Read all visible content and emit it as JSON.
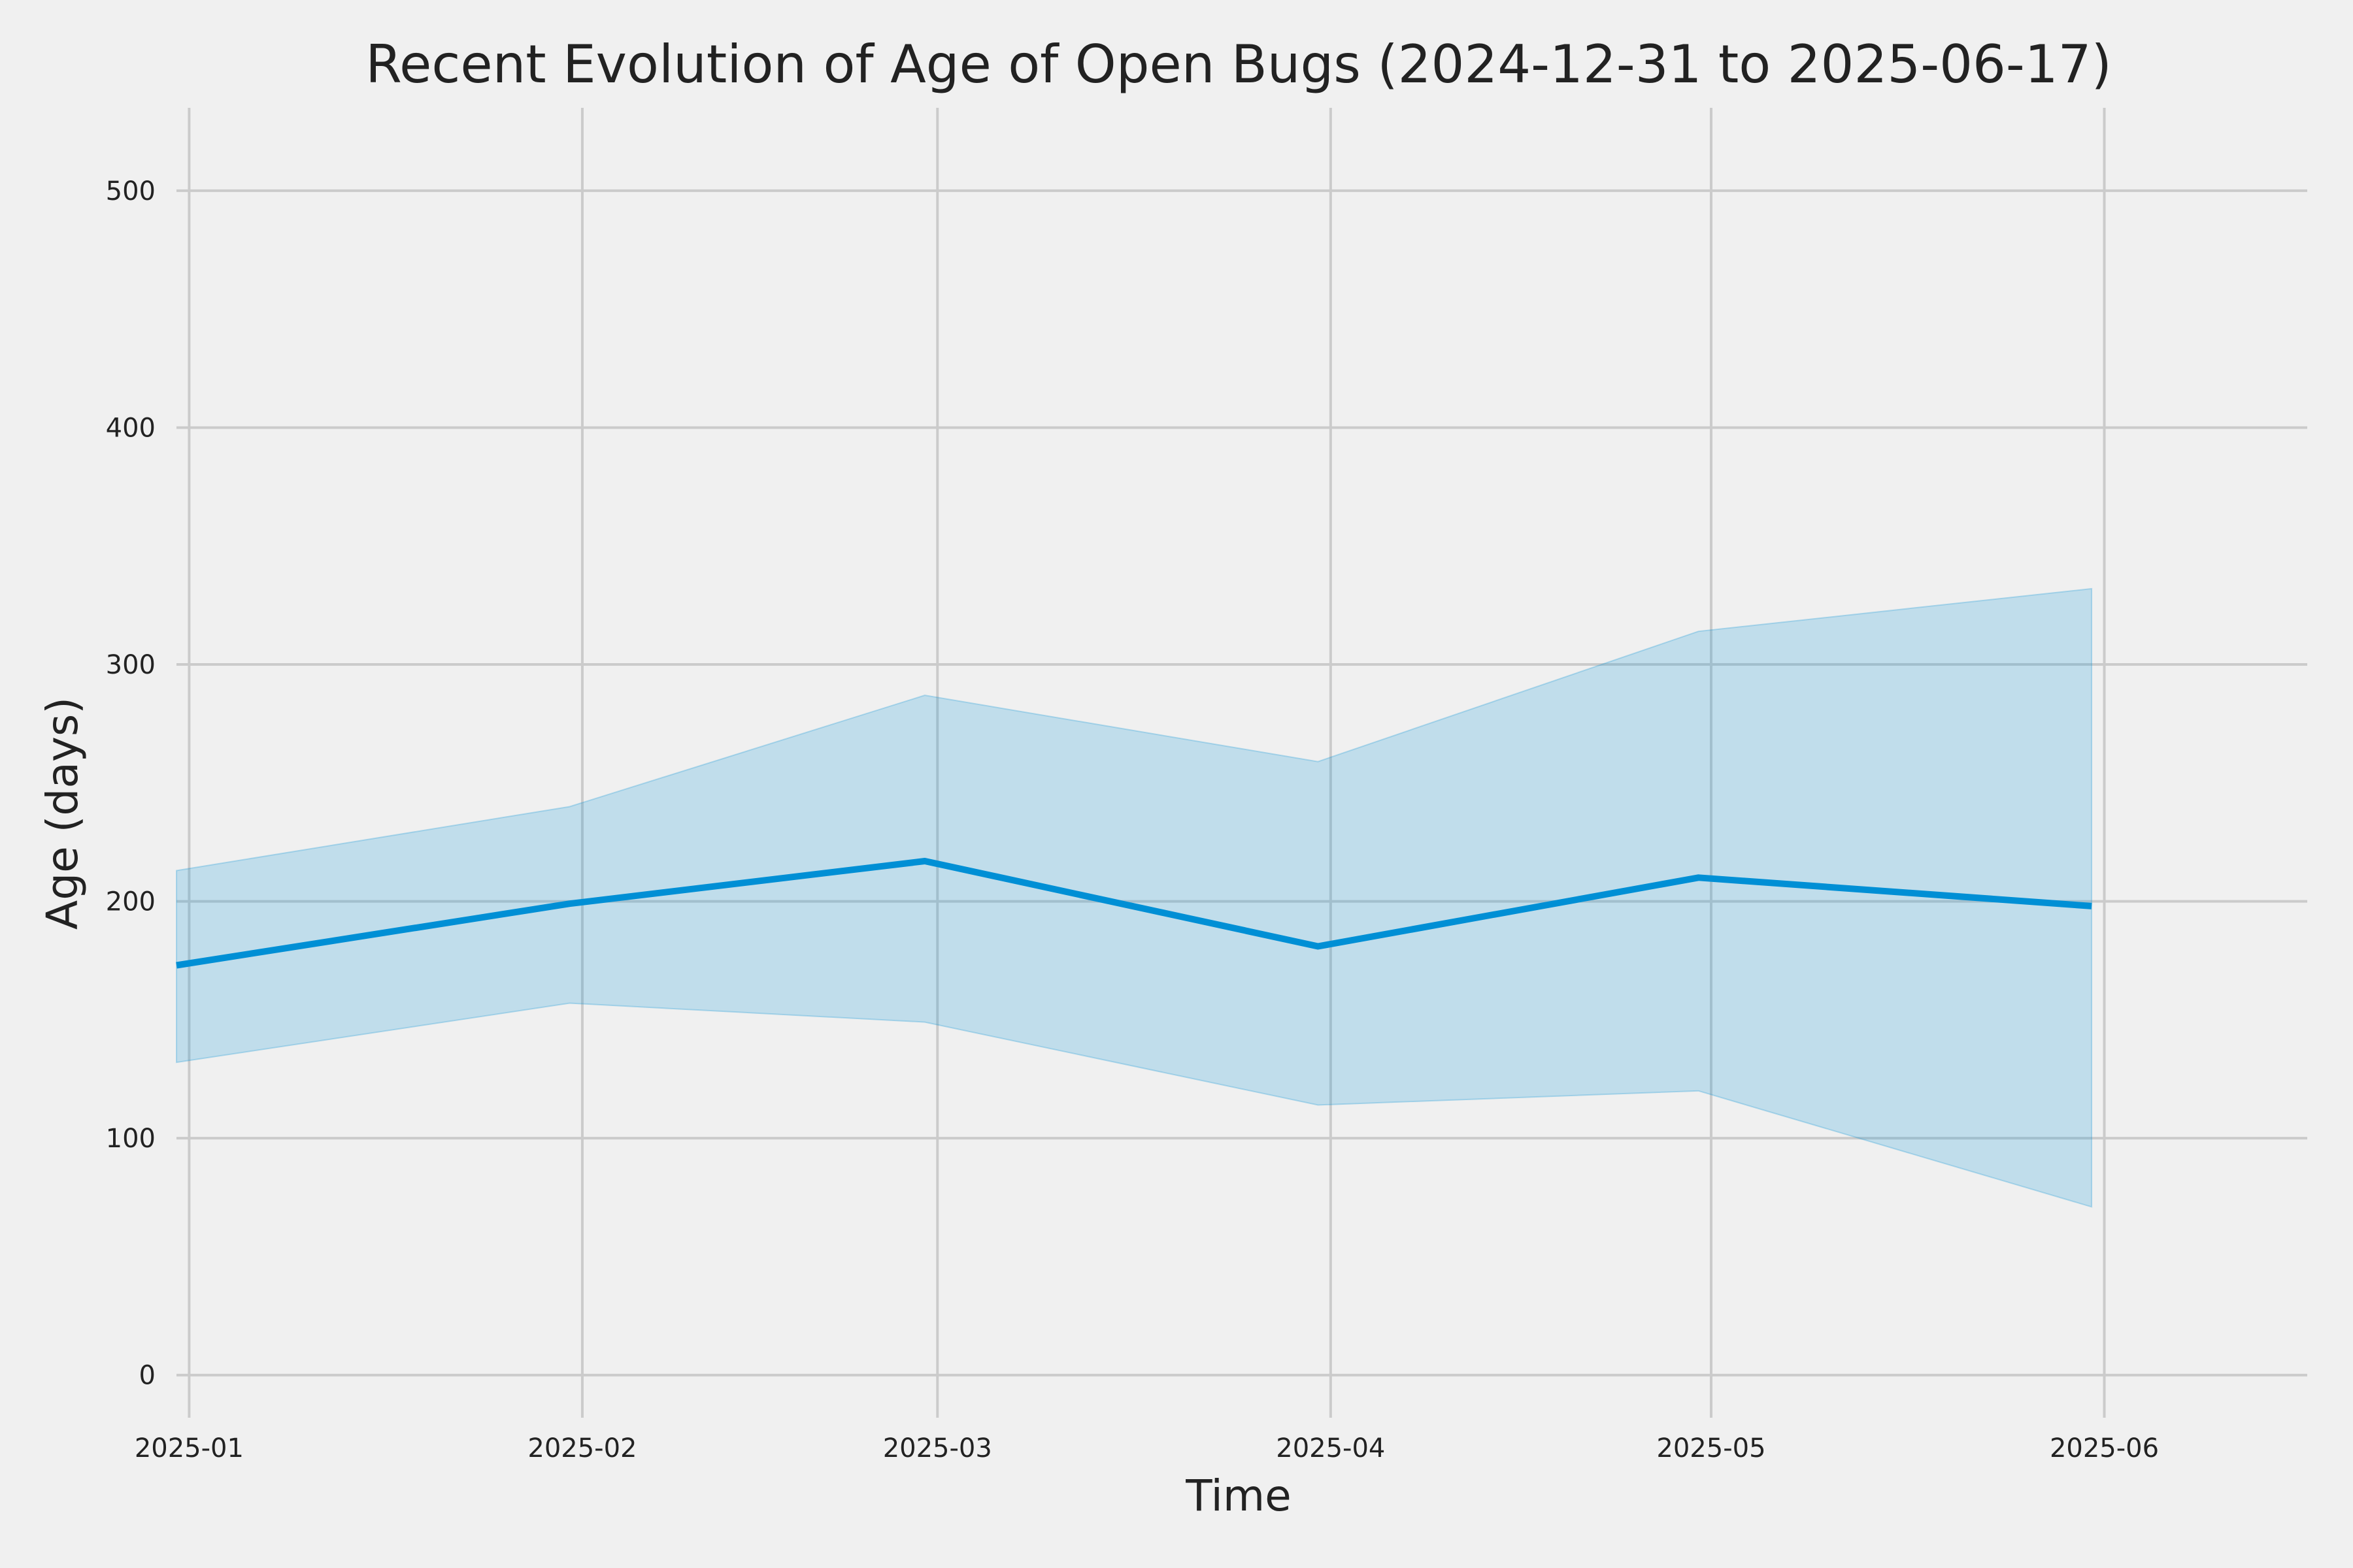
{
  "chart_data": {
    "type": "line",
    "title": "Recent Evolution of Age of Open Bugs (2024-12-31 to 2025-06-17)",
    "xlabel": "Time",
    "ylabel": "Age (days)",
    "x": [
      "2024-12-31",
      "2025-01-31",
      "2025-02-28",
      "2025-03-31",
      "2025-04-30",
      "2025-05-31"
    ],
    "xlim": [
      "2024-12-31",
      "2025-06-17"
    ],
    "x_ticks": [
      {
        "date": "2025-01-01",
        "label": "2025-01"
      },
      {
        "date": "2025-02-01",
        "label": "2025-02"
      },
      {
        "date": "2025-03-01",
        "label": "2025-03"
      },
      {
        "date": "2025-04-01",
        "label": "2025-04"
      },
      {
        "date": "2025-05-01",
        "label": "2025-05"
      },
      {
        "date": "2025-06-01",
        "label": "2025-06"
      }
    ],
    "ylim": [
      -18,
      535
    ],
    "y_ticks": [
      0,
      100,
      200,
      300,
      400,
      500
    ],
    "series": [
      {
        "values": [
          173,
          199,
          217,
          181,
          210,
          198
        ],
        "lower": [
          132,
          157,
          149,
          114,
          120,
          71
        ],
        "upper": [
          213,
          240,
          287,
          259,
          314,
          332
        ]
      }
    ],
    "grid": true,
    "colors": {
      "line": "#008fd5",
      "band": "#008fd5",
      "background": "#f0f0f0",
      "grid": "#cbcbcb"
    }
  }
}
